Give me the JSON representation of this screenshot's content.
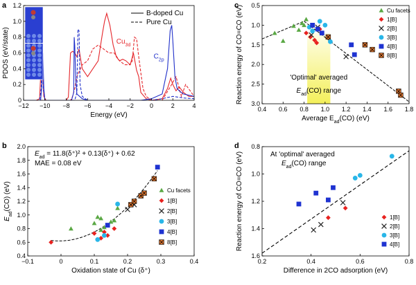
{
  "chart_data": [
    {
      "panel": "a",
      "type": "line",
      "xlabel": "Energy (eV)",
      "ylabel": "PDOS (eV/state)",
      "xlim": [
        -12,
        4
      ],
      "ylim": [
        0,
        1.2
      ],
      "xticks": [
        "−12",
        "−10",
        "−8",
        "−6",
        "−4",
        "−2",
        "0",
        "2",
        "4"
      ],
      "yticks": [
        "0",
        "0.2",
        "0.4",
        "0.6",
        "0.8",
        "1.0",
        "1.2"
      ],
      "legend": [
        "B-doped Cu",
        "Pure Cu"
      ],
      "annotations": {
        "cu": "Cu",
        "cu_sub": "3d",
        "c": "C",
        "c_sub": "2p"
      },
      "series": [
        {
          "name": "Cu3d B-doped",
          "color": "#e5262b",
          "style": "solid",
          "x": [
            -12,
            -10.8,
            -10.5,
            -10.3,
            -10.1,
            -9.9,
            -9,
            -8,
            -7.8,
            -7.6,
            -7.4,
            -7.2,
            -7,
            -6.8,
            -6.5,
            -6,
            -5,
            -4.6,
            -4.4,
            -4.2,
            -3.9,
            -3.6,
            -3.3,
            -3,
            -2.7,
            -2.4,
            -2,
            -1.7,
            -1.4,
            -1.2,
            -1,
            -0.5,
            0,
            1,
            1.5,
            1.8,
            2,
            2.3,
            2.6,
            3,
            3.5,
            4
          ],
          "y": [
            0,
            0,
            0.02,
            0.6,
            0.05,
            0,
            0,
            0,
            0.04,
            0.6,
            0.62,
            0.6,
            0.55,
            0.65,
            0.4,
            0.3,
            0.5,
            0.85,
            1.0,
            1.1,
            0.95,
            0.7,
            0.55,
            0.5,
            0.52,
            0.5,
            0.45,
            0.6,
            0.38,
            0.3,
            0.1,
            0.02,
            0,
            0.02,
            0.15,
            0.28,
            0.2,
            0.12,
            0.17,
            0.1,
            0.05,
            0.05
          ]
        },
        {
          "name": "Cu3d Pure",
          "color": "#e5262b",
          "style": "dashed",
          "x": [
            -12,
            -7.6,
            -7.4,
            -7.2,
            -7,
            -6.5,
            -6,
            -5.5,
            -5,
            -4.5,
            -4,
            -3.5,
            -3,
            -2.5,
            -2,
            -1.8,
            -1.6,
            -1.4,
            -1.2,
            -1,
            -0.8,
            -0.5,
            0,
            1,
            1.8,
            2.3,
            2.8,
            3.2,
            4
          ],
          "y": [
            0,
            0,
            0.05,
            0.15,
            0.3,
            0.45,
            0.5,
            0.65,
            0.7,
            0.65,
            0.6,
            0.6,
            0.5,
            0.45,
            0.45,
            0.5,
            0.8,
            0.78,
            0.55,
            0.35,
            0.15,
            0.05,
            0,
            0,
            0.18,
            0.3,
            0.05,
            0.2,
            0.05
          ]
        },
        {
          "name": "C2p B-doped",
          "color": "#1f2fc9",
          "style": "solid",
          "x": [
            -12,
            -10.4,
            -10.3,
            -10.2,
            -10.1,
            -10,
            -9.5,
            -8,
            -7.5,
            -7.3,
            -7.25,
            -7.2,
            -7.1,
            -7,
            -6.5,
            -6,
            -5,
            -4,
            -3,
            -2,
            -1,
            0,
            1,
            1.5,
            1.75,
            1.9,
            2,
            2.2,
            2.4,
            2.6,
            3,
            4
          ],
          "y": [
            0,
            0,
            0.15,
            0.6,
            0.15,
            0,
            0,
            0,
            0,
            0.1,
            0.8,
            0.7,
            0.25,
            0.08,
            0.02,
            0,
            0,
            0,
            0,
            0,
            0,
            0.02,
            0.08,
            0.4,
            0.88,
            0.95,
            0.75,
            0.3,
            0.15,
            0.12,
            0.08,
            0.05
          ]
        },
        {
          "name": "C2p Pure",
          "color": "#1f2fc9",
          "style": "dashed",
          "x": [
            -12,
            -10.5,
            -10.35,
            -10.25,
            -10.15,
            -10,
            -8,
            -7.2,
            -7,
            -6.9,
            -6.8,
            -6.7,
            -6.5,
            -6,
            -3,
            0,
            1,
            2,
            3,
            4
          ],
          "y": [
            0,
            0,
            0.15,
            0.7,
            0.15,
            0,
            0,
            0,
            0.1,
            0.9,
            0.88,
            0.2,
            0.05,
            0,
            0,
            0,
            0.02,
            0.05,
            0.03,
            0.02
          ]
        }
      ]
    },
    {
      "panel": "b",
      "type": "scatter",
      "xlabel": "Oxidation state of Cu (δ⁺)",
      "ylabel": "E",
      "ylabel_sub": "ad",
      "ylabel_rest": "(CO) (eV)",
      "xlim": [
        -0.1,
        0.4
      ],
      "ylim": [
        0.4,
        2.0
      ],
      "xticks": [
        "−0.1",
        "0",
        "0.1",
        "0.2",
        "0.3",
        "0.4"
      ],
      "yticks": [
        "0.4",
        "0.6",
        "0.8",
        "1.0",
        "1.2",
        "1.4",
        "1.6",
        "1.8",
        "2.0"
      ],
      "equation": "E",
      "equation_sub": "ad",
      "equation_rest": " = 11.8(δ⁺)² + 0.13(δ⁺) + 0.62",
      "mae": "MAE = 0.08 eV",
      "legend": [
        "Cu facets",
        "1[B]",
        "2[B]",
        "3[B]",
        "4[B]",
        "8[B]"
      ],
      "fit": {
        "a": 11.8,
        "b": 0.13,
        "c": 0.62,
        "x_range": [
          -0.03,
          0.29
        ]
      },
      "series": [
        {
          "name": "Cu facets",
          "marker": "triangle",
          "x": [
            0.03,
            0.1,
            0.11,
            0.12,
            0.13,
            0.15,
            0.16,
            0.17,
            0.12
          ],
          "y": [
            0.8,
            0.88,
            0.97,
            0.95,
            0.82,
            0.9,
            0.92,
            1.1,
            0.78
          ]
        },
        {
          "name": "1[B]",
          "marker": "diamond",
          "x": [
            -0.03,
            0.1,
            0.12,
            0.13,
            0.14,
            0.16
          ],
          "y": [
            0.6,
            0.73,
            0.66,
            0.75,
            0.7,
            0.8
          ]
        },
        {
          "name": "2[B]",
          "marker": "x",
          "x": [
            0.2,
            0.22
          ],
          "y": [
            1.08,
            1.15
          ]
        },
        {
          "name": "3[B]",
          "marker": "circle",
          "x": [
            0.11,
            0.13,
            0.17
          ],
          "y": [
            0.64,
            0.7,
            1.16
          ]
        },
        {
          "name": "4[B]",
          "marker": "square",
          "x": [
            0.14,
            0.29
          ],
          "y": [
            0.85,
            1.7
          ]
        },
        {
          "name": "8[B]",
          "marker": "boxdot",
          "x": [
            0.21,
            0.22,
            0.24,
            0.25,
            0.28
          ],
          "y": [
            1.15,
            1.2,
            1.28,
            1.32,
            1.53
          ]
        }
      ]
    },
    {
      "panel": "c",
      "type": "scatter",
      "xlabel": "Average E",
      "xlabel_sub": "ad",
      "xlabel_rest": "(CO) (eV)",
      "ylabel": "Reaction energy of CO=CO (eV)",
      "xlim": [
        0.4,
        1.8
      ],
      "ylim": [
        3.0,
        0.5
      ],
      "xticks": [
        "0.4",
        "0.6",
        "0.8",
        "1.0",
        "1.2",
        "1.4",
        "1.6",
        "1.8"
      ],
      "yticks": [
        "0.5",
        "1.0",
        "1.5",
        "2.0",
        "2.5",
        "3.0"
      ],
      "optimal_label": "'Optimal' averaged",
      "optimal_label2_pre": "E",
      "optimal_label2_sub": "ad",
      "optimal_label2_rest": "(CO) range",
      "optimal_range": [
        0.83,
        1.05
      ],
      "legend": [
        "Cu facets",
        "1[B]",
        "2[B]",
        "3[B]",
        "4[B]",
        "8[B]"
      ],
      "trend_left": [
        [
          0.4,
          1.35
        ],
        [
          0.8,
          0.9
        ]
      ],
      "trend_right": [
        [
          0.8,
          0.9
        ],
        [
          1.8,
          2.95
        ]
      ],
      "series": [
        {
          "name": "Cu facets",
          "marker": "triangle",
          "x": [
            0.52,
            0.6,
            0.7,
            0.75,
            0.78,
            0.8,
            0.82
          ],
          "y": [
            1.2,
            1.4,
            1.02,
            1.12,
            0.95,
            1.0,
            0.85
          ]
        },
        {
          "name": "1[B]",
          "marker": "diamond",
          "x": [
            0.82,
            0.86,
            0.9,
            0.92,
            0.95
          ],
          "y": [
            1.2,
            1.3,
            1.38,
            1.45,
            1.1
          ]
        },
        {
          "name": "2[B]",
          "marker": "x",
          "x": [
            0.87,
            0.93,
            1.2
          ],
          "y": [
            1.25,
            1.05,
            1.8
          ]
        },
        {
          "name": "3[B]",
          "marker": "circle",
          "x": [
            0.85,
            0.88,
            0.95,
            1.0,
            1.05
          ],
          "y": [
            1.05,
            1.15,
            0.9,
            1.0,
            1.42
          ]
        },
        {
          "name": "4[B]",
          "marker": "square",
          "x": [
            0.88,
            0.93,
            0.97,
            1.25,
            1.28
          ],
          "y": [
            1.0,
            1.1,
            1.2,
            1.5,
            1.75
          ]
        },
        {
          "name": "8[B]",
          "marker": "boxdot",
          "x": [
            1.03,
            1.38,
            1.45,
            1.7,
            1.72
          ],
          "y": [
            1.3,
            1.5,
            1.62,
            2.68,
            2.78
          ]
        }
      ]
    },
    {
      "panel": "d",
      "type": "scatter",
      "xlabel": "Difference in 2CO adsorption (eV)",
      "ylabel": "Reaction energy of CO=CO (eV)",
      "xlim": [
        0.2,
        0.8
      ],
      "ylim": [
        1.6,
        0.8
      ],
      "xticks": [
        "0.2",
        "0.4",
        "0.6",
        "0.8"
      ],
      "yticks": [
        "0.8",
        "1.0",
        "1.2",
        "1.4",
        "1.6"
      ],
      "annotation1": "At 'optimal' averaged",
      "annotation2_pre": "E",
      "annotation2_sub": "ad",
      "annotation2_rest": "(CO) range",
      "legend": [
        "1[B]",
        "2[B]",
        "3[B]",
        "4[B]"
      ],
      "trend": [
        [
          0.2,
          1.58
        ],
        [
          0.8,
          0.83
        ]
      ],
      "series": [
        {
          "name": "1[B]",
          "marker": "diamond",
          "x": [
            0.47,
            0.54
          ],
          "y": [
            1.32,
            1.25
          ]
        },
        {
          "name": "2[B]",
          "marker": "x",
          "x": [
            0.41,
            0.44,
            0.53
          ],
          "y": [
            1.41,
            1.37,
            1.21
          ]
        },
        {
          "name": "3[B]",
          "marker": "circle",
          "x": [
            0.58,
            0.6,
            0.73
          ],
          "y": [
            1.03,
            1.01,
            0.87
          ]
        },
        {
          "name": "4[B]",
          "marker": "square",
          "x": [
            0.35,
            0.42,
            0.47,
            0.49
          ],
          "y": [
            1.22,
            1.14,
            1.19,
            1.1
          ]
        }
      ]
    }
  ],
  "panel_labels": [
    "a",
    "b",
    "c",
    "d"
  ],
  "colors": {
    "cu": "#e5262b",
    "c": "#1f2fc9",
    "facet": "#5aa844",
    "b1": "#e8221f",
    "b2": "#222222",
    "b3": "#29b6e8",
    "b4": "#1f33d1",
    "b8": "#e3772f",
    "band": "#f4f05a"
  }
}
